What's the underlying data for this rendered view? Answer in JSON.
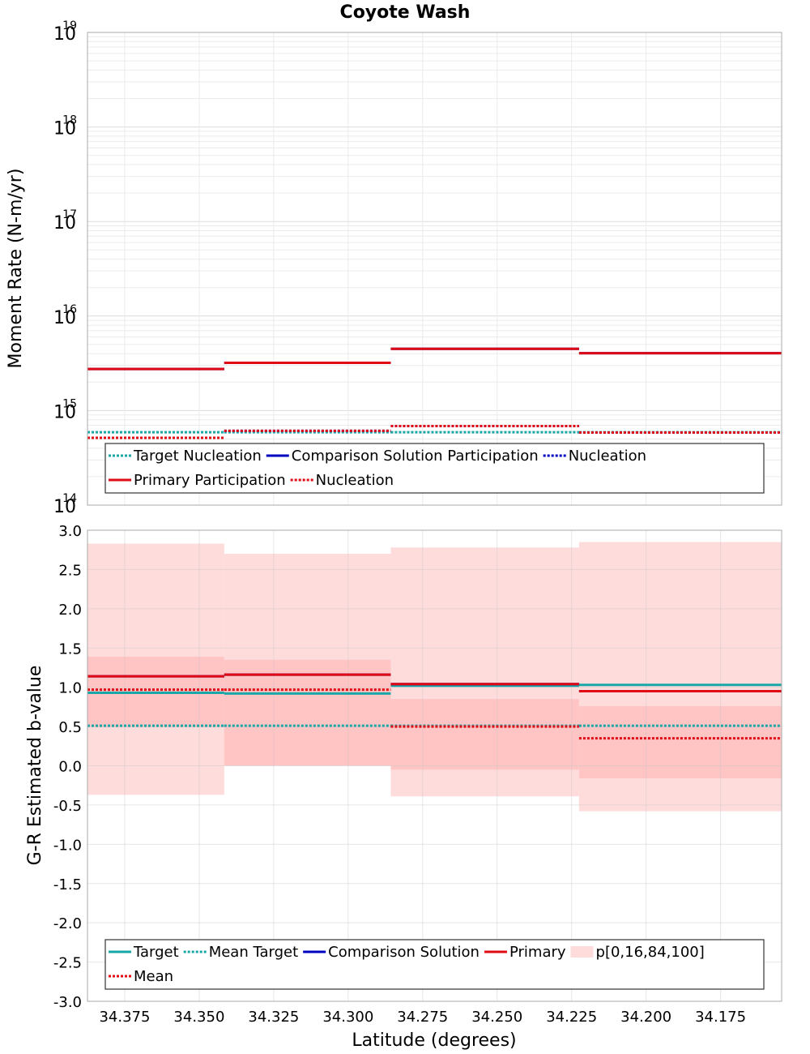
{
  "title": "Coyote Wash",
  "colors": {
    "target": "#1aa7a7",
    "comparison": "#0000c0",
    "primary": "#e00a14",
    "band_outer": "#ffdcdc",
    "band_inner": "#ffc4c4",
    "grid": "#ebebeb",
    "frame": "#aaaaaa"
  },
  "chart_data": [
    {
      "type": "line",
      "subtype": "step",
      "title": "Coyote Wash",
      "ylabel": "Moment Rate (N-m/yr)",
      "yscale": "log",
      "ylim": [
        100000000000000.0,
        1e+19
      ],
      "xlim": [
        34.3875,
        34.1545
      ],
      "x_reversed": true,
      "grid": true,
      "y_ticks": [
        {
          "value": 1e+19,
          "base": "10",
          "exp": "19"
        },
        {
          "value": 1e+18,
          "base": "10",
          "exp": "18"
        },
        {
          "value": 1e+17,
          "base": "10",
          "exp": "17"
        },
        {
          "value": 1e+16,
          "base": "10",
          "exp": "16"
        },
        {
          "value": 1000000000000000.0,
          "base": "10",
          "exp": "15"
        },
        {
          "value": 100000000000000.0,
          "base": "10",
          "exp": "14"
        }
      ],
      "segment_edges": [
        34.3875,
        34.3416,
        34.2857,
        34.2225,
        34.1545
      ],
      "series": [
        {
          "name": "Target Nucleation",
          "color": "target",
          "style": "dotted",
          "values": [
            590000000000000.0,
            590000000000000.0,
            590000000000000.0,
            590000000000000.0
          ]
        },
        {
          "name": "Comparison Solution Participation",
          "color": "comparison",
          "style": "solid",
          "values": [
            2750000000000000.0,
            3200000000000000.0,
            4500000000000000.0,
            4050000000000000.0
          ]
        },
        {
          "name": "Nucleation",
          "color": "comparison",
          "style": "dotted",
          "values": [
            515000000000000.0,
            610000000000000.0,
            685000000000000.0,
            585000000000000.0
          ]
        },
        {
          "name": "Primary Participation",
          "color": "primary",
          "style": "solid",
          "values": [
            2750000000000000.0,
            3200000000000000.0,
            4500000000000000.0,
            4050000000000000.0
          ]
        },
        {
          "name": "Nucleation",
          "color": "primary",
          "style": "dotted",
          "values": [
            515000000000000.0,
            610000000000000.0,
            685000000000000.0,
            585000000000000.0
          ]
        }
      ],
      "legend": {
        "placement": "bottom",
        "rows": [
          [
            {
              "label": "Target Nucleation",
              "color": "target",
              "style": "dotted"
            },
            {
              "label": "Comparison Solution Participation",
              "color": "comparison",
              "style": "solid"
            },
            {
              "label": "Nucleation",
              "color": "comparison",
              "style": "dotted"
            }
          ],
          [
            {
              "label": "Primary Participation",
              "color": "primary",
              "style": "solid"
            },
            {
              "label": "Nucleation",
              "color": "primary",
              "style": "dotted"
            }
          ]
        ]
      }
    },
    {
      "type": "line",
      "subtype": "step",
      "xlabel": "Latitude (degrees)",
      "ylabel": "G-R Estimated b-value",
      "ylim": [
        -3.0,
        3.0
      ],
      "xlim": [
        34.3875,
        34.1545
      ],
      "x_reversed": true,
      "grid": true,
      "y_ticks": [
        "3.0",
        "2.5",
        "2.0",
        "1.5",
        "1.0",
        "0.5",
        "0.0",
        "-0.5",
        "-1.0",
        "-1.5",
        "-2.0",
        "-2.5",
        "-3.0"
      ],
      "x_ticks": [
        "34.375",
        "34.350",
        "34.325",
        "34.300",
        "34.275",
        "34.250",
        "34.225",
        "34.200",
        "34.175"
      ],
      "segment_edges": [
        34.3875,
        34.3416,
        34.2857,
        34.2225,
        34.1545
      ],
      "bands": {
        "name": "p[0,16,84,100]",
        "p0": [
          -0.37,
          0.0,
          -0.39,
          -0.58
        ],
        "p16": [
          0.49,
          0.0,
          -0.05,
          -0.16
        ],
        "p84": [
          1.39,
          1.35,
          0.85,
          0.76
        ],
        "p100": [
          2.83,
          2.7,
          2.78,
          2.85
        ]
      },
      "series": [
        {
          "name": "Target",
          "color": "target",
          "style": "solid",
          "values": [
            0.93,
            0.92,
            1.02,
            1.03
          ]
        },
        {
          "name": "Mean Target",
          "color": "target",
          "style": "dotted",
          "values": [
            0.51,
            0.51,
            0.51,
            0.51
          ]
        },
        {
          "name": "Comparison Solution",
          "color": "comparison",
          "style": "solid",
          "values": [
            1.14,
            1.16,
            1.04,
            0.95
          ]
        },
        {
          "name": "Primary",
          "color": "primary",
          "style": "solid",
          "values": [
            1.14,
            1.16,
            1.04,
            0.95
          ]
        },
        {
          "name": "Mean",
          "color": "primary",
          "style": "dotted",
          "values": [
            0.97,
            0.97,
            0.5,
            0.35
          ]
        }
      ],
      "legend": {
        "placement": "bottom",
        "rows": [
          [
            {
              "label": "Target",
              "color": "target",
              "style": "solid"
            },
            {
              "label": "Mean Target",
              "color": "target",
              "style": "dotted"
            },
            {
              "label": "Comparison Solution",
              "color": "comparison",
              "style": "solid"
            },
            {
              "label": "Primary",
              "color": "primary",
              "style": "solid"
            },
            {
              "label": "p[0,16,84,100]",
              "color": "band_outer",
              "style": "band"
            }
          ],
          [
            {
              "label": "Mean",
              "color": "primary",
              "style": "dotted"
            }
          ]
        ]
      }
    }
  ]
}
